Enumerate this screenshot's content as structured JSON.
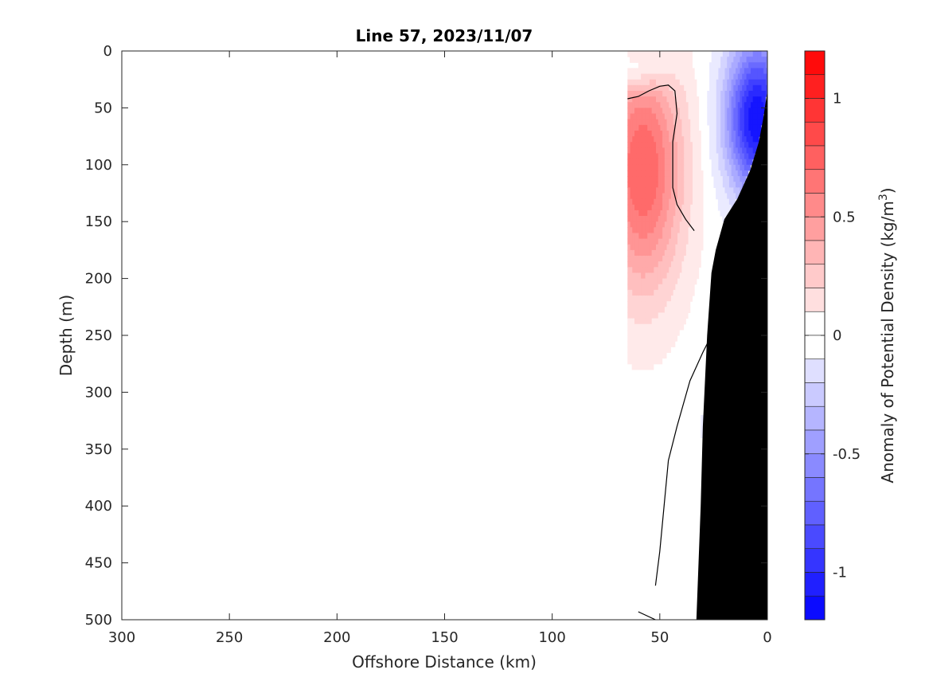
{
  "chart_data": {
    "type": "heatmap",
    "title": "Line 57, 2023/11/07",
    "xlabel": "Offshore Distance (km)",
    "ylabel": "Depth (m)",
    "xlim": [
      300,
      0
    ],
    "ylim": [
      0,
      500
    ],
    "x_reversed": true,
    "y_reversed": true,
    "x_ticks": [
      300,
      250,
      200,
      150,
      100,
      50,
      0
    ],
    "y_ticks": [
      0,
      50,
      100,
      150,
      200,
      250,
      300,
      350,
      400,
      450,
      500
    ],
    "x_tick_labels": [
      "300",
      "250",
      "200",
      "150",
      "100",
      "50",
      "0"
    ],
    "y_tick_labels": [
      "0",
      "50",
      "100",
      "150",
      "200",
      "250",
      "300",
      "350",
      "400",
      "450",
      "500"
    ],
    "colorbar": {
      "label_main": "Anomaly of Potential Density (kg/m",
      "label_sup": "3",
      "label_end": ")",
      "limits": [
        -1.2,
        1.2
      ],
      "step": 0.1,
      "ticks": [
        1,
        0.5,
        0,
        -0.5,
        -1
      ],
      "tick_labels": [
        "1",
        "0.5",
        "0",
        "-0.5",
        "-1"
      ],
      "colors": {
        "negative": "#0000ff",
        "zero": "#ffffff",
        "positive": "#ff0000"
      }
    },
    "data_extent_x": [
      0,
      65
    ],
    "features": {
      "positive_core": {
        "x": 58,
        "depth": 105,
        "anomaly": 0.75
      },
      "negative_core": {
        "x": 5,
        "depth": 60,
        "anomaly": -1.15
      },
      "surface_negative_patch": {
        "x": 60,
        "depth": 15,
        "anomaly": -0.3
      },
      "bathymetry_fill": "#000000"
    },
    "zero_contour": [
      [
        65,
        42
      ],
      [
        60,
        40
      ],
      [
        55,
        35
      ],
      [
        50,
        31
      ],
      [
        46,
        30
      ],
      [
        43,
        35
      ],
      [
        42,
        55
      ],
      [
        44,
        80
      ],
      [
        44,
        120
      ],
      [
        42,
        135
      ],
      [
        38,
        148
      ],
      [
        34,
        158
      ]
    ],
    "zero_contour_deep": [
      [
        26,
        250
      ],
      [
        30,
        265
      ],
      [
        36,
        290
      ],
      [
        42,
        330
      ],
      [
        46,
        360
      ],
      [
        48,
        400
      ],
      [
        50,
        440
      ],
      [
        52,
        470
      ]
    ],
    "zero_contour_bottom": [
      [
        60,
        493
      ],
      [
        52,
        500
      ]
    ],
    "bathymetry": [
      [
        0,
        35
      ],
      [
        2,
        60
      ],
      [
        4,
        80
      ],
      [
        8,
        105
      ],
      [
        14,
        130
      ],
      [
        20,
        148
      ],
      [
        24,
        175
      ],
      [
        26,
        195
      ],
      [
        28,
        250
      ],
      [
        30,
        330
      ],
      [
        31,
        400
      ],
      [
        32,
        450
      ],
      [
        33,
        500
      ],
      [
        0,
        500
      ]
    ]
  }
}
